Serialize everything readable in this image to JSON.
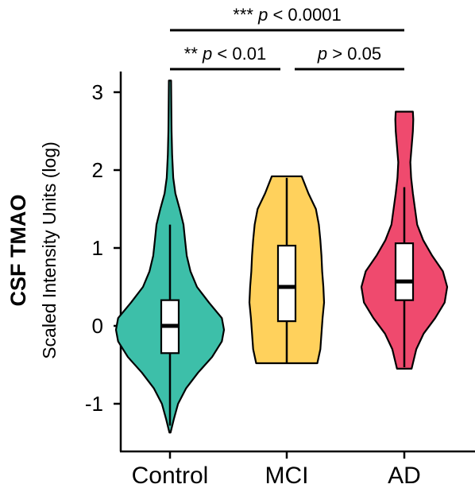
{
  "chart_data": {
    "type": "violin",
    "title": "",
    "ylabel": "CSF TMAO",
    "ylabel_sub": "Scaled Intensity Units (log)",
    "xlabel": "",
    "ylim": [
      -1.6,
      3.3
    ],
    "yticks": [
      -1,
      0,
      1,
      2,
      3
    ],
    "ytick_labels": [
      "-1",
      "0",
      "1",
      "2",
      "3"
    ],
    "categories": [
      "Control",
      "MCI",
      "AD"
    ],
    "colors": {
      "Control": "#3dbfa9",
      "MCI": "#ffd15c",
      "AD": "#ef4a6e"
    },
    "groups": [
      {
        "name": "Control",
        "violin_min": -1.37,
        "violin_max": 3.15,
        "whisker_low": -1.28,
        "whisker_high": 1.3,
        "q1": -0.35,
        "median": 0.0,
        "q3": 0.33,
        "density": [
          [
            -1.37,
            0.01
          ],
          [
            -1.2,
            0.07
          ],
          [
            -1.0,
            0.15
          ],
          [
            -0.8,
            0.3
          ],
          [
            -0.6,
            0.52
          ],
          [
            -0.4,
            0.78
          ],
          [
            -0.2,
            0.96
          ],
          [
            -0.05,
            1.0
          ],
          [
            0.1,
            0.96
          ],
          [
            0.3,
            0.72
          ],
          [
            0.5,
            0.5
          ],
          [
            0.7,
            0.38
          ],
          [
            0.9,
            0.31
          ],
          [
            1.1,
            0.28
          ],
          [
            1.3,
            0.25
          ],
          [
            1.5,
            0.18
          ],
          [
            1.7,
            0.1
          ],
          [
            1.9,
            0.06
          ],
          [
            2.2,
            0.04
          ],
          [
            2.5,
            0.03
          ],
          [
            2.8,
            0.025
          ],
          [
            3.15,
            0.02
          ]
        ]
      },
      {
        "name": "MCI",
        "violin_min": -0.48,
        "violin_max": 1.92,
        "whisker_low": -0.47,
        "whisker_high": 1.9,
        "q1": 0.06,
        "median": 0.5,
        "q3": 1.03,
        "density": [
          [
            -0.48,
            0.82
          ],
          [
            -0.3,
            0.9
          ],
          [
            -0.1,
            0.93
          ],
          [
            0.1,
            0.96
          ],
          [
            0.3,
            1.0
          ],
          [
            0.5,
            0.98
          ],
          [
            0.7,
            0.95
          ],
          [
            0.9,
            0.93
          ],
          [
            1.1,
            0.9
          ],
          [
            1.3,
            0.86
          ],
          [
            1.5,
            0.78
          ],
          [
            1.7,
            0.58
          ],
          [
            1.92,
            0.4
          ]
        ]
      },
      {
        "name": "AD",
        "violin_min": -0.55,
        "violin_max": 2.75,
        "whisker_low": -0.53,
        "whisker_high": 1.78,
        "q1": 0.33,
        "median": 0.57,
        "q3": 1.06,
        "density": [
          [
            -0.55,
            0.17
          ],
          [
            -0.3,
            0.28
          ],
          [
            -0.1,
            0.45
          ],
          [
            0.1,
            0.72
          ],
          [
            0.3,
            0.94
          ],
          [
            0.5,
            1.0
          ],
          [
            0.7,
            0.9
          ],
          [
            0.9,
            0.65
          ],
          [
            1.1,
            0.44
          ],
          [
            1.3,
            0.3
          ],
          [
            1.5,
            0.25
          ],
          [
            1.7,
            0.2
          ],
          [
            1.9,
            0.16
          ],
          [
            2.1,
            0.14
          ],
          [
            2.3,
            0.17
          ],
          [
            2.5,
            0.2
          ],
          [
            2.65,
            0.21
          ],
          [
            2.75,
            0.2
          ]
        ]
      }
    ],
    "significance": [
      {
        "from": "Control",
        "to": "AD",
        "stars": "***",
        "p": "p",
        "relation": "< 0.0001",
        "level": 2
      },
      {
        "from": "Control",
        "to": "MCI",
        "stars": "**",
        "p": "p",
        "relation": "< 0.01",
        "level": 1
      },
      {
        "from": "MCI",
        "to": "AD",
        "stars": "",
        "p": "p",
        "relation": "> 0.05",
        "level": 1
      }
    ]
  }
}
